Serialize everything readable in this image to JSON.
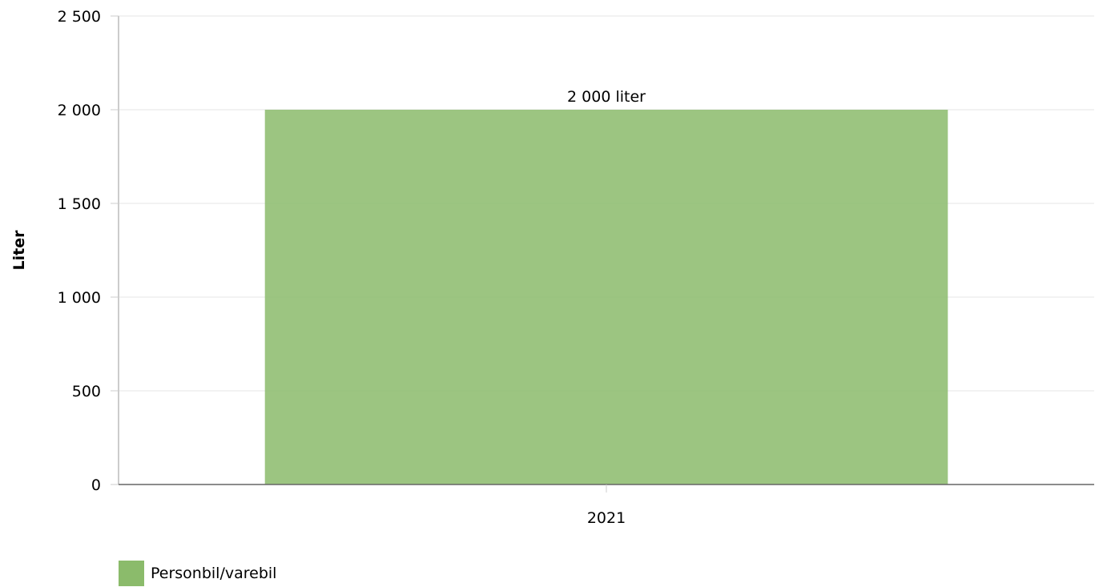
{
  "chart_data": {
    "type": "bar",
    "categories": [
      "2021"
    ],
    "series": [
      {
        "name": "Personbil/varebil",
        "values": [
          2000
        ],
        "color": "#8bbb6b"
      }
    ],
    "data_labels": [
      "2 000 liter"
    ],
    "ylabel": "Liter",
    "xlabel": "",
    "ylim": [
      0,
      2500
    ],
    "yticks": [
      0,
      500,
      1000,
      1500,
      2000,
      2500
    ],
    "ytick_labels": [
      "0",
      "500",
      "1 000",
      "1 500",
      "2 000",
      "2 500"
    ],
    "grid": true,
    "legend_position": "bottom-left"
  }
}
